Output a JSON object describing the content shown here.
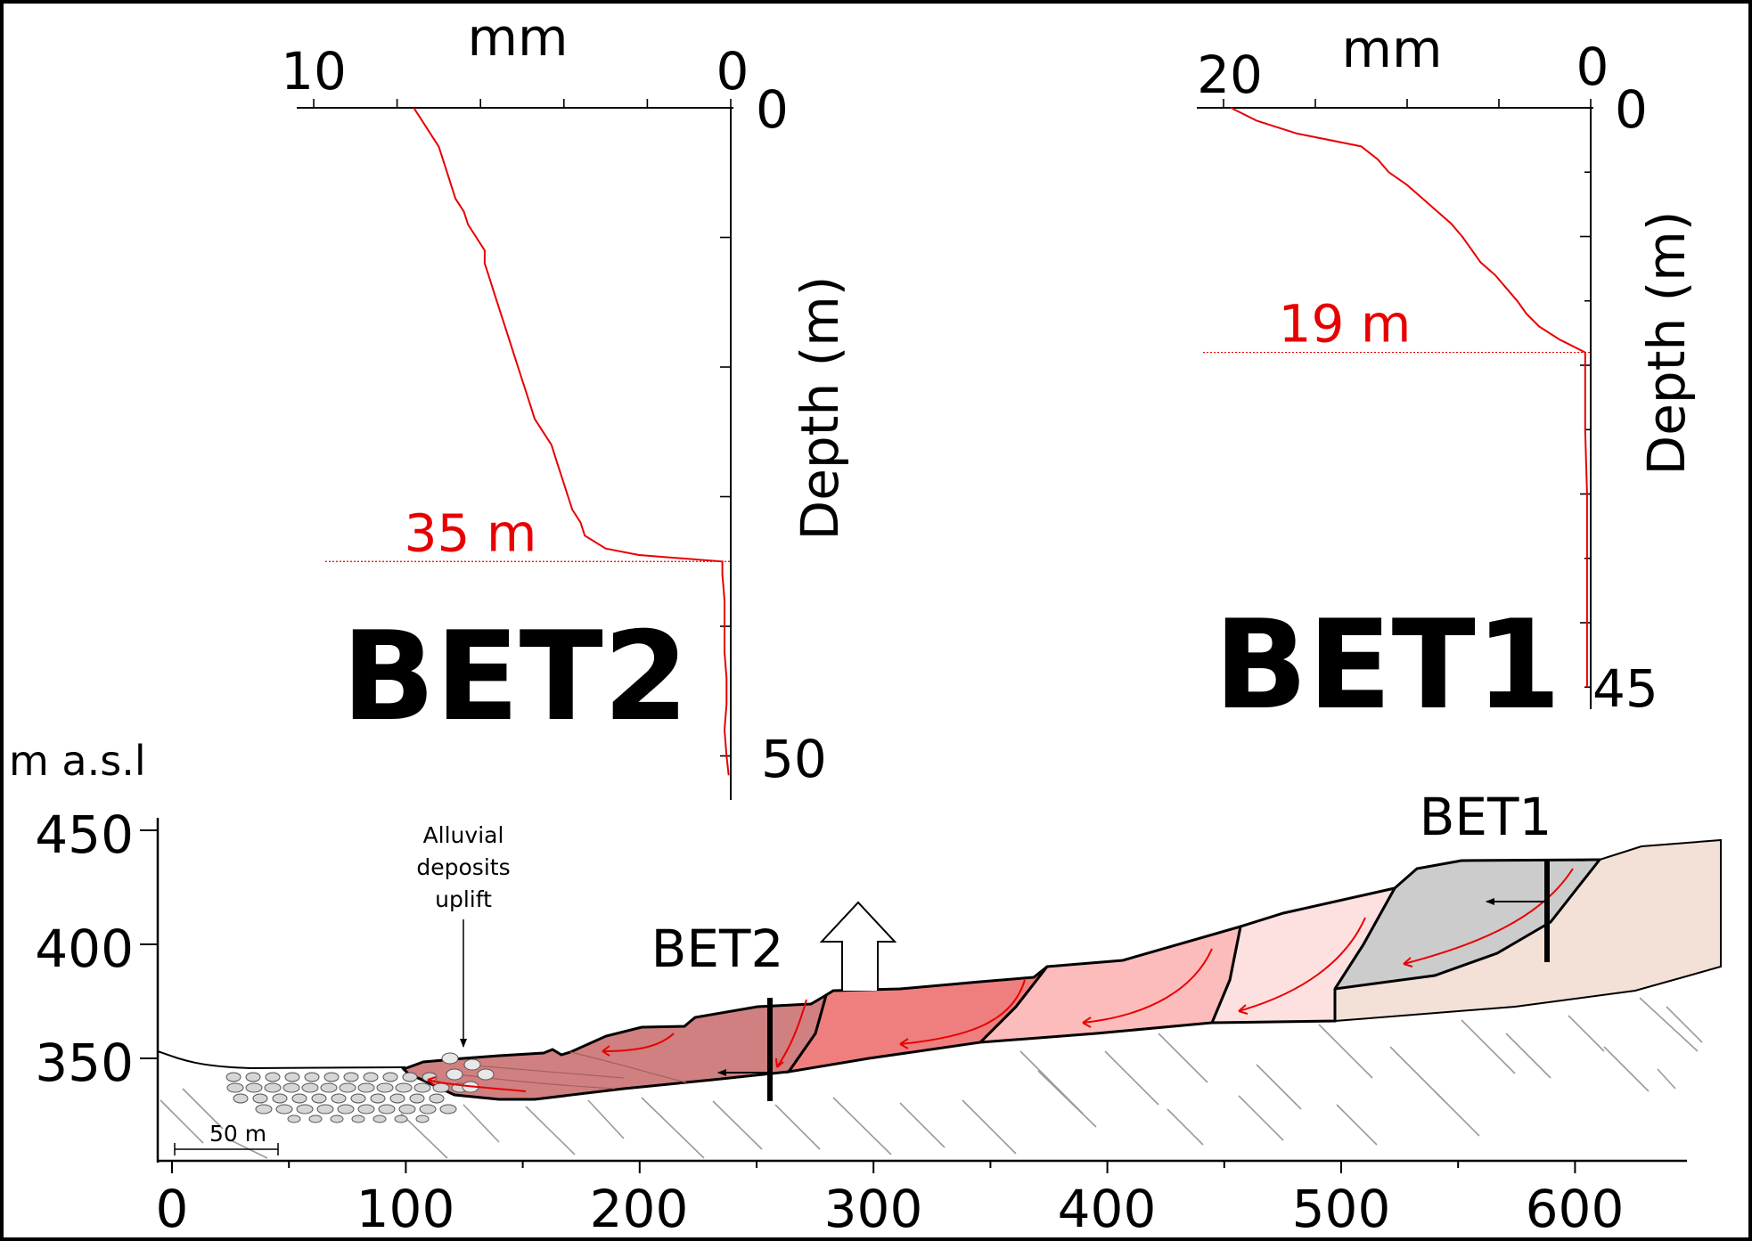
{
  "chart_data": [
    {
      "type": "line",
      "title": "BET2",
      "xlabel": "mm",
      "ylabel": "Depth (m)",
      "xlim": [
        10,
        0
      ],
      "ylim": [
        0,
        50
      ],
      "x_tick_labels": [
        "10",
        "0"
      ],
      "y_tick_labels": [
        "0",
        "50"
      ],
      "annotation": "35 m",
      "annotation_depth": 35,
      "series": [
        {
          "color": "#e80000",
          "depth": [
            0,
            1,
            2,
            3,
            4,
            5,
            6,
            7,
            8,
            9,
            10,
            11,
            12,
            13,
            14,
            15,
            16,
            17,
            18,
            19,
            20,
            21,
            22,
            23,
            24,
            25,
            26,
            27,
            28,
            29,
            30,
            31,
            32,
            33,
            34,
            34.5,
            35,
            36,
            38,
            40,
            42,
            44,
            46,
            48,
            50,
            51.5
          ],
          "mm": [
            7.6,
            7.4,
            7.2,
            7.0,
            6.9,
            6.8,
            6.7,
            6.6,
            6.4,
            6.3,
            6.1,
            5.9,
            5.9,
            5.8,
            5.7,
            5.6,
            5.5,
            5.4,
            5.3,
            5.2,
            5.1,
            5.0,
            4.9,
            4.8,
            4.7,
            4.5,
            4.3,
            4.2,
            4.1,
            4.0,
            3.9,
            3.8,
            3.6,
            3.5,
            3.0,
            2.2,
            0.2,
            0.2,
            0.15,
            0.15,
            0.15,
            0.1,
            0.1,
            0.15,
            0.1,
            0.05
          ]
        }
      ]
    },
    {
      "type": "line",
      "title": "BET1",
      "xlabel": "mm",
      "ylabel": "Depth (m)",
      "xlim": [
        20,
        0
      ],
      "ylim": [
        0,
        45
      ],
      "x_tick_labels": [
        "20",
        "0"
      ],
      "y_tick_labels": [
        "0",
        "45"
      ],
      "annotation": "19 m",
      "annotation_depth": 19,
      "series": [
        {
          "color": "#e80000",
          "depth": [
            0,
            1,
            2,
            3,
            4,
            5,
            6,
            7,
            8,
            9,
            10,
            11,
            12,
            13,
            14,
            15,
            16,
            17,
            18,
            18.5,
            19,
            20,
            25,
            30,
            35,
            40,
            45
          ],
          "mm": [
            19.6,
            18.2,
            16.0,
            12.5,
            11.6,
            11.0,
            10.0,
            9.2,
            8.4,
            7.6,
            7.0,
            6.5,
            6.0,
            5.2,
            4.6,
            4.0,
            3.5,
            2.8,
            1.7,
            1.0,
            0.3,
            0.3,
            0.3,
            0.2,
            0.2,
            0.2,
            0.2
          ]
        }
      ]
    }
  ],
  "section": {
    "y_unit": "m a.s.l",
    "y_ticks": [
      "450",
      "400",
      "350"
    ],
    "x_ticks": [
      "0",
      "100",
      "200",
      "300",
      "400",
      "500",
      "600"
    ],
    "scale_bar": "50 m",
    "uplift_label_lines": [
      "Alluvial",
      "deposits",
      "uplift"
    ],
    "borehole_bet2": "BET2",
    "borehole_bet1": "BET1"
  },
  "colors": {
    "curve": "#e80000",
    "slide_1": "#d08080",
    "slide_2": "#ef7f7f",
    "slide_3": "#fcbcbc",
    "slide_4": "#fde0e0",
    "slide_5": "#cccccc",
    "upper_slope": "#f3e1d7"
  }
}
